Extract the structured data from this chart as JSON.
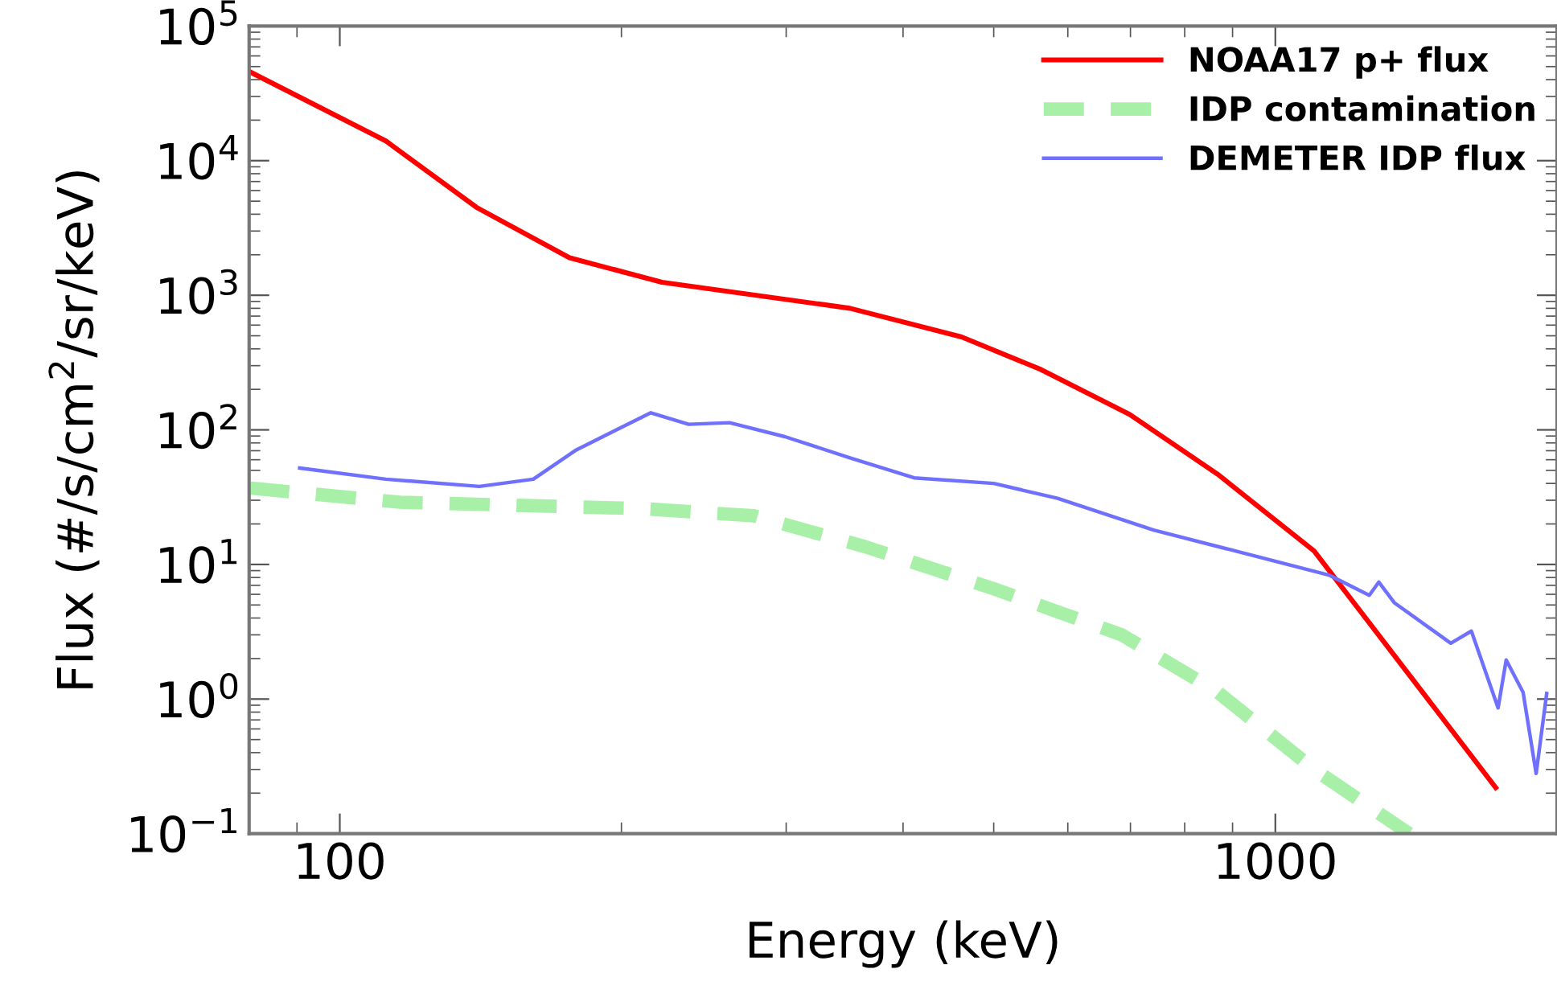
{
  "chart_data": {
    "type": "line",
    "xlabel": "Energy (keV)",
    "ylabel": "Flux (#/s/cm$^{2}$/sr/keV)",
    "log": "xy",
    "grid": false,
    "legend": "top right",
    "xlim": [
      80,
      2000
    ],
    "xticks": [
      100,
      1000
    ],
    "ylim": [
      0.1,
      100000
    ],
    "yticks": [
      {
        "value": 0.1,
        "label": "10$^{−1}$"
      },
      {
        "value": 1,
        "label": "10$^{0}$"
      },
      {
        "value": 10,
        "label": "10$^{1}$"
      },
      {
        "value": 100,
        "label": "10$^{2}$"
      },
      {
        "value": 1000,
        "label": "10$^{3}$"
      },
      {
        "value": 10000,
        "label": "10$^{4}$"
      },
      {
        "value": 100000,
        "label": "10$^{5}$"
      }
    ],
    "series": [
      {
        "name": "NOAA17 p+ flux",
        "color": "#ff0000",
        "line_style": "solid",
        "x": [
          80,
          112,
          140,
          176,
          221,
          351,
          462,
          562,
          699,
          867,
          1100,
          1720
        ],
        "values": [
          46000,
          14000,
          4500,
          1900,
          1250,
          800,
          490,
          280,
          130,
          47,
          12.6,
          0.22
        ]
      },
      {
        "name": "IDP contamination",
        "color": "#a8f0a8",
        "line_style": "dashed",
        "x": [
          80,
          116,
          210,
          277,
          365,
          500,
          685,
          867,
          1100,
          1390
        ],
        "values": [
          37,
          29,
          26,
          23,
          13.5,
          6.6,
          3,
          1.13,
          0.3,
          0.1
        ]
      },
      {
        "name": "DEMETER IDP flux",
        "color": "#7070ff",
        "line_style": "solid",
        "x": [
          90.6,
          112,
          141,
          161,
          179,
          215,
          236,
          261,
          299,
          351,
          411,
          500,
          585,
          741,
          940,
          1143,
          1260,
          1290,
          1340,
          1540,
          1620,
          1730,
          1765,
          1840,
          1900,
          1950
        ],
        "values": [
          52,
          43,
          38,
          43,
          71,
          134,
          110,
          113,
          89,
          62,
          44,
          40,
          31,
          18,
          11.8,
          8.3,
          5.9,
          7.4,
          5.2,
          2.6,
          3.2,
          0.86,
          1.95,
          1.12,
          0.28,
          1.1
        ]
      }
    ]
  }
}
